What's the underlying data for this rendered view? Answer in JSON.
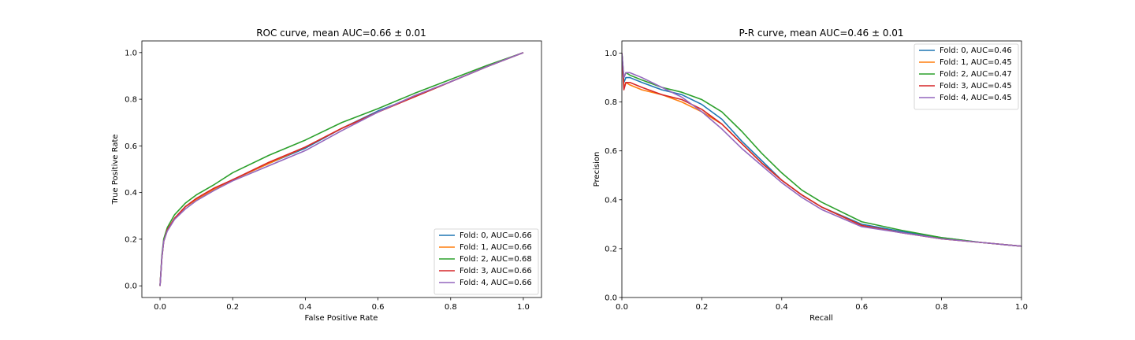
{
  "chart_data": [
    {
      "type": "line",
      "title": "ROC curve, mean AUC=0.66 ± 0.01",
      "xlabel": "False Positive Rate",
      "ylabel": "True Positive Rate",
      "xlim": [
        -0.05,
        1.05
      ],
      "ylim": [
        -0.05,
        1.05
      ],
      "xticks": [
        0.0,
        0.2,
        0.4,
        0.6,
        0.8,
        1.0
      ],
      "xtick_labels": [
        "0.0",
        "0.2",
        "0.4",
        "0.6",
        "0.8",
        "1.0"
      ],
      "yticks": [
        0.0,
        0.2,
        0.4,
        0.6,
        0.8,
        1.0
      ],
      "ytick_labels": [
        "0.0",
        "0.2",
        "0.4",
        "0.6",
        "0.8",
        "1.0"
      ],
      "grid": false,
      "legend_position": "lower-right",
      "series": [
        {
          "name": "Fold: 0, AUC=0.66",
          "color": "#1f77b4",
          "x": [
            0.0,
            0.005,
            0.01,
            0.02,
            0.04,
            0.07,
            0.1,
            0.15,
            0.2,
            0.3,
            0.4,
            0.5,
            0.6,
            0.7,
            0.8,
            0.9,
            1.0
          ],
          "y": [
            0.0,
            0.12,
            0.19,
            0.24,
            0.29,
            0.34,
            0.37,
            0.415,
            0.455,
            0.525,
            0.59,
            0.675,
            0.75,
            0.81,
            0.875,
            0.94,
            1.0
          ]
        },
        {
          "name": "Fold: 1, AUC=0.66",
          "color": "#ff7f0e",
          "x": [
            0.0,
            0.005,
            0.01,
            0.02,
            0.04,
            0.07,
            0.1,
            0.15,
            0.2,
            0.3,
            0.4,
            0.5,
            0.6,
            0.7,
            0.8,
            0.9,
            1.0
          ],
          "y": [
            0.0,
            0.12,
            0.19,
            0.24,
            0.29,
            0.34,
            0.37,
            0.415,
            0.455,
            0.525,
            0.595,
            0.675,
            0.745,
            0.81,
            0.875,
            0.94,
            1.0
          ]
        },
        {
          "name": "Fold: 2, AUC=0.68",
          "color": "#2ca02c",
          "x": [
            0.0,
            0.005,
            0.01,
            0.02,
            0.04,
            0.07,
            0.1,
            0.15,
            0.2,
            0.3,
            0.4,
            0.5,
            0.6,
            0.7,
            0.8,
            0.9,
            1.0
          ],
          "y": [
            0.0,
            0.13,
            0.2,
            0.25,
            0.305,
            0.355,
            0.39,
            0.435,
            0.485,
            0.56,
            0.625,
            0.7,
            0.76,
            0.825,
            0.885,
            0.945,
            1.0
          ]
        },
        {
          "name": "Fold: 3, AUC=0.66",
          "color": "#d62728",
          "x": [
            0.0,
            0.005,
            0.01,
            0.02,
            0.04,
            0.07,
            0.1,
            0.15,
            0.2,
            0.3,
            0.4,
            0.5,
            0.6,
            0.7,
            0.8,
            0.9,
            1.0
          ],
          "y": [
            0.0,
            0.12,
            0.19,
            0.24,
            0.29,
            0.34,
            0.375,
            0.42,
            0.455,
            0.53,
            0.595,
            0.675,
            0.745,
            0.81,
            0.875,
            0.94,
            1.0
          ]
        },
        {
          "name": "Fold: 4, AUC=0.66",
          "color": "#9467bd",
          "x": [
            0.0,
            0.005,
            0.01,
            0.02,
            0.04,
            0.07,
            0.1,
            0.15,
            0.2,
            0.3,
            0.4,
            0.5,
            0.6,
            0.7,
            0.8,
            0.9,
            1.0
          ],
          "y": [
            0.0,
            0.12,
            0.19,
            0.235,
            0.285,
            0.33,
            0.365,
            0.41,
            0.45,
            0.515,
            0.58,
            0.665,
            0.745,
            0.815,
            0.875,
            0.94,
            1.0
          ]
        }
      ]
    },
    {
      "type": "line",
      "title": "P-R curve, mean AUC=0.46 ± 0.01",
      "xlabel": "Recall",
      "ylabel": "Precision",
      "xlim": [
        0.0,
        1.0
      ],
      "ylim": [
        0.0,
        1.05
      ],
      "xticks": [
        0.0,
        0.2,
        0.4,
        0.6,
        0.8,
        1.0
      ],
      "xtick_labels": [
        "0.0",
        "0.2",
        "0.4",
        "0.6",
        "0.8",
        "1.0"
      ],
      "yticks": [
        0.0,
        0.2,
        0.4,
        0.6,
        0.8,
        1.0
      ],
      "ytick_labels": [
        "0.0",
        "0.2",
        "0.4",
        "0.6",
        "0.8",
        "1.0"
      ],
      "grid": false,
      "legend_position": "upper-right",
      "series": [
        {
          "name": "Fold: 0, AUC=0.46",
          "color": "#1f77b4",
          "x": [
            0.0,
            0.005,
            0.01,
            0.02,
            0.05,
            0.1,
            0.15,
            0.2,
            0.25,
            0.3,
            0.35,
            0.4,
            0.45,
            0.5,
            0.6,
            0.7,
            0.8,
            0.9,
            1.0
          ],
          "y": [
            1.0,
            0.88,
            0.9,
            0.9,
            0.88,
            0.85,
            0.83,
            0.79,
            0.73,
            0.64,
            0.56,
            0.48,
            0.42,
            0.37,
            0.3,
            0.27,
            0.245,
            0.225,
            0.21
          ]
        },
        {
          "name": "Fold: 1, AUC=0.45",
          "color": "#ff7f0e",
          "x": [
            0.0,
            0.005,
            0.01,
            0.02,
            0.05,
            0.1,
            0.15,
            0.2,
            0.25,
            0.3,
            0.35,
            0.4,
            0.45,
            0.5,
            0.6,
            0.7,
            0.8,
            0.9,
            1.0
          ],
          "y": [
            1.0,
            0.86,
            0.88,
            0.87,
            0.85,
            0.83,
            0.8,
            0.76,
            0.71,
            0.63,
            0.55,
            0.48,
            0.42,
            0.37,
            0.295,
            0.265,
            0.24,
            0.225,
            0.21
          ]
        },
        {
          "name": "Fold: 2, AUC=0.47",
          "color": "#2ca02c",
          "x": [
            0.0,
            0.005,
            0.01,
            0.02,
            0.05,
            0.1,
            0.15,
            0.2,
            0.25,
            0.3,
            0.35,
            0.4,
            0.45,
            0.5,
            0.6,
            0.7,
            0.8,
            0.9,
            1.0
          ],
          "y": [
            1.0,
            0.9,
            0.92,
            0.91,
            0.89,
            0.86,
            0.84,
            0.81,
            0.76,
            0.68,
            0.59,
            0.51,
            0.44,
            0.39,
            0.31,
            0.275,
            0.245,
            0.225,
            0.21
          ]
        },
        {
          "name": "Fold: 3, AUC=0.45",
          "color": "#d62728",
          "x": [
            0.0,
            0.005,
            0.01,
            0.02,
            0.05,
            0.1,
            0.15,
            0.2,
            0.25,
            0.3,
            0.35,
            0.4,
            0.45,
            0.5,
            0.6,
            0.7,
            0.8,
            0.9,
            1.0
          ],
          "y": [
            1.0,
            0.85,
            0.88,
            0.88,
            0.86,
            0.83,
            0.81,
            0.77,
            0.71,
            0.63,
            0.55,
            0.48,
            0.42,
            0.37,
            0.295,
            0.265,
            0.24,
            0.225,
            0.21
          ]
        },
        {
          "name": "Fold: 4, AUC=0.45",
          "color": "#9467bd",
          "x": [
            0.0,
            0.005,
            0.01,
            0.02,
            0.05,
            0.1,
            0.15,
            0.2,
            0.25,
            0.3,
            0.35,
            0.4,
            0.45,
            0.5,
            0.6,
            0.7,
            0.8,
            0.9,
            1.0
          ],
          "y": [
            1.0,
            0.9,
            0.92,
            0.92,
            0.9,
            0.86,
            0.82,
            0.76,
            0.69,
            0.61,
            0.54,
            0.47,
            0.41,
            0.36,
            0.29,
            0.265,
            0.24,
            0.225,
            0.21
          ]
        }
      ]
    }
  ]
}
